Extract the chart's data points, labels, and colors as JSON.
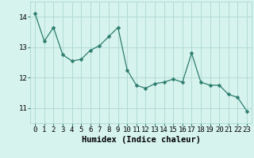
{
  "x": [
    0,
    1,
    2,
    3,
    4,
    5,
    6,
    7,
    8,
    9,
    10,
    11,
    12,
    13,
    14,
    15,
    16,
    17,
    18,
    19,
    20,
    21,
    22,
    23
  ],
  "y": [
    14.1,
    13.2,
    13.65,
    12.75,
    12.55,
    12.6,
    12.9,
    13.05,
    13.35,
    13.65,
    12.25,
    11.75,
    11.65,
    11.8,
    11.85,
    11.95,
    11.85,
    12.8,
    11.85,
    11.75,
    11.75,
    11.45,
    11.35,
    10.9
  ],
  "line_color": "#2e7d6e",
  "marker": "D",
  "marker_size": 2.5,
  "bg_color": "#d6f3ee",
  "grid_color": "#aed8d0",
  "xlabel": "Humidex (Indice chaleur)",
  "xlabel_fontsize": 7.5,
  "tick_fontsize": 6.5,
  "ylim": [
    10.5,
    14.5
  ],
  "xlim": [
    -0.5,
    23.5
  ],
  "yticks": [
    11,
    12,
    13,
    14
  ],
  "xticks": [
    0,
    1,
    2,
    3,
    4,
    5,
    6,
    7,
    8,
    9,
    10,
    11,
    12,
    13,
    14,
    15,
    16,
    17,
    18,
    19,
    20,
    21,
    22,
    23
  ]
}
